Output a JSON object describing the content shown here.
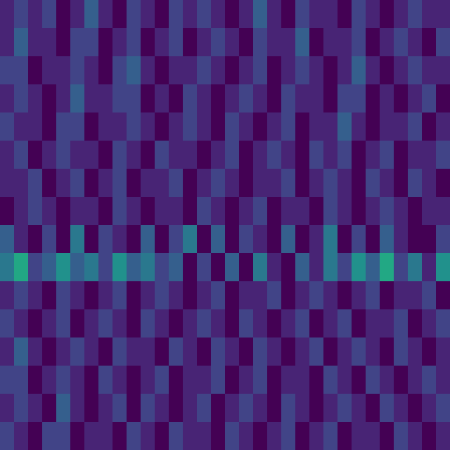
{
  "chart_data": {
    "type": "heatmap",
    "color": "viridis",
    "zlim": [
      0,
      1
    ],
    "tick_labels": false,
    "values": [
      [
        0.1,
        0.2,
        0.1,
        0.2,
        0.0,
        0.1,
        0.3,
        0.1,
        0.0,
        0.2,
        0.1,
        0.0,
        0.2,
        0.1,
        0.2,
        0.1,
        0.0,
        0.1,
        0.3,
        0.1,
        0.0,
        0.2,
        0.1,
        0.1,
        0.0,
        0.2,
        0.1,
        0.0,
        0.1,
        0.2,
        0.1,
        0.1
      ],
      [
        0.1,
        0.3,
        0.1,
        0.1,
        0.0,
        0.2,
        0.2,
        0.0,
        0.1,
        0.2,
        0.0,
        0.1,
        0.2,
        0.0,
        0.1,
        0.2,
        0.1,
        0.0,
        0.2,
        0.1,
        0.1,
        0.3,
        0.0,
        0.1,
        0.1,
        0.2,
        0.0,
        0.1,
        0.2,
        0.1,
        0.0,
        0.2
      ],
      [
        0.2,
        0.2,
        0.0,
        0.1,
        0.1,
        0.2,
        0.1,
        0.0,
        0.2,
        0.3,
        0.1,
        0.0,
        0.1,
        0.1,
        0.2,
        0.1,
        0.0,
        0.1,
        0.2,
        0.0,
        0.1,
        0.2,
        0.1,
        0.0,
        0.1,
        0.3,
        0.1,
        0.0,
        0.1,
        0.2,
        0.1,
        0.1
      ],
      [
        0.1,
        0.2,
        0.1,
        0.0,
        0.1,
        0.3,
        0.1,
        0.1,
        0.2,
        0.2,
        0.0,
        0.1,
        0.0,
        0.2,
        0.1,
        0.0,
        0.1,
        0.2,
        0.1,
        0.0,
        0.2,
        0.1,
        0.1,
        0.0,
        0.2,
        0.2,
        0.0,
        0.1,
        0.0,
        0.1,
        0.2,
        0.0
      ],
      [
        0.2,
        0.1,
        0.1,
        0.0,
        0.2,
        0.2,
        0.0,
        0.1,
        0.1,
        0.2,
        0.1,
        0.0,
        0.1,
        0.2,
        0.1,
        0.0,
        0.2,
        0.1,
        0.0,
        0.1,
        0.2,
        0.0,
        0.1,
        0.1,
        0.3,
        0.1,
        0.0,
        0.1,
        0.1,
        0.2,
        0.0,
        0.1
      ],
      [
        0.1,
        0.2,
        0.0,
        0.1,
        0.2,
        0.1,
        0.1,
        0.0,
        0.2,
        0.1,
        0.0,
        0.2,
        0.1,
        0.1,
        0.0,
        0.1,
        0.2,
        0.0,
        0.1,
        0.2,
        0.1,
        0.0,
        0.2,
        0.1,
        0.2,
        0.0,
        0.1,
        0.2,
        0.0,
        0.1,
        0.1,
        0.2
      ],
      [
        0.1,
        0.1,
        0.2,
        0.0,
        0.1,
        0.2,
        0.0,
        0.1,
        0.2,
        0.0,
        0.1,
        0.1,
        0.2,
        0.0,
        0.1,
        0.2,
        0.1,
        0.0,
        0.1,
        0.1,
        0.2,
        0.0,
        0.1,
        0.2,
        0.1,
        0.0,
        0.2,
        0.1,
        0.0,
        0.2,
        0.1,
        0.0
      ],
      [
        0.0,
        0.1,
        0.2,
        0.1,
        0.0,
        0.1,
        0.1,
        0.0,
        0.2,
        0.1,
        0.0,
        0.1,
        0.1,
        0.0,
        0.2,
        0.1,
        0.0,
        0.1,
        0.2,
        0.0,
        0.1,
        0.1,
        0.0,
        0.2,
        0.1,
        0.0,
        0.1,
        0.2,
        0.1,
        0.0,
        0.1,
        0.1
      ],
      [
        0.3,
        0.1,
        0.0,
        0.2,
        0.0,
        0.4,
        0.0,
        0.2,
        0.1,
        0.0,
        0.3,
        0.0,
        0.2,
        0.4,
        0.0,
        0.3,
        0.0,
        0.2,
        0.1,
        0.0,
        0.3,
        0.0,
        0.1,
        0.4,
        0.0,
        0.2,
        0.0,
        0.3,
        0.1,
        0.0,
        0.0,
        0.2
      ],
      [
        0.4,
        0.6,
        0.2,
        0.3,
        0.5,
        0.3,
        0.4,
        0.2,
        0.5,
        0.3,
        0.4,
        0.2,
        0.3,
        0.0,
        0.2,
        0.0,
        0.3,
        0.0,
        0.4,
        0.1,
        0.0,
        0.3,
        0.1,
        0.4,
        0.2,
        0.5,
        0.3,
        0.6,
        0.2,
        0.4,
        0.1,
        0.5
      ],
      [
        0.1,
        0.2,
        0.1,
        0.0,
        0.2,
        0.1,
        0.0,
        0.1,
        0.2,
        0.0,
        0.1,
        0.2,
        0.1,
        0.0,
        0.1,
        0.2,
        0.0,
        0.1,
        0.1,
        0.2,
        0.0,
        0.1,
        0.2,
        0.1,
        0.0,
        0.1,
        0.2,
        0.0,
        0.1,
        0.1,
        0.2,
        0.0
      ],
      [
        0.2,
        0.1,
        0.0,
        0.1,
        0.2,
        0.0,
        0.1,
        0.2,
        0.1,
        0.0,
        0.2,
        0.1,
        0.0,
        0.1,
        0.2,
        0.1,
        0.0,
        0.2,
        0.1,
        0.0,
        0.1,
        0.2,
        0.0,
        0.1,
        0.2,
        0.0,
        0.1,
        0.1,
        0.2,
        0.0,
        0.1,
        0.2
      ],
      [
        0.1,
        0.3,
        0.1,
        0.0,
        0.1,
        0.2,
        0.1,
        0.0,
        0.2,
        0.1,
        0.1,
        0.0,
        0.2,
        0.1,
        0.0,
        0.2,
        0.1,
        0.0,
        0.2,
        0.1,
        0.0,
        0.1,
        0.2,
        0.0,
        0.1,
        0.2,
        0.1,
        0.0,
        0.2,
        0.1,
        0.0,
        0.1
      ],
      [
        0.2,
        0.2,
        0.0,
        0.1,
        0.2,
        0.1,
        0.0,
        0.2,
        0.1,
        0.0,
        0.1,
        0.2,
        0.0,
        0.1,
        0.1,
        0.2,
        0.0,
        0.1,
        0.2,
        0.0,
        0.1,
        0.1,
        0.0,
        0.2,
        0.1,
        0.0,
        0.2,
        0.1,
        0.0,
        0.1,
        0.2,
        0.1
      ],
      [
        0.1,
        0.2,
        0.1,
        0.0,
        0.3,
        0.1,
        0.0,
        0.1,
        0.2,
        0.0,
        0.2,
        0.1,
        0.0,
        0.1,
        0.2,
        0.0,
        0.1,
        0.2,
        0.1,
        0.0,
        0.2,
        0.1,
        0.0,
        0.1,
        0.2,
        0.1,
        0.0,
        0.2,
        0.1,
        0.0,
        0.1,
        0.2
      ],
      [
        0.2,
        0.1,
        0.0,
        0.2,
        0.2,
        0.0,
        0.1,
        0.1,
        0.0,
        0.2,
        0.1,
        0.0,
        0.2,
        0.1,
        0.1,
        0.0,
        0.2,
        0.1,
        0.0,
        0.1,
        0.2,
        0.0,
        0.1,
        0.2,
        0.0,
        0.1,
        0.1,
        0.0,
        0.2,
        0.1,
        0.0,
        0.1
      ]
    ]
  }
}
